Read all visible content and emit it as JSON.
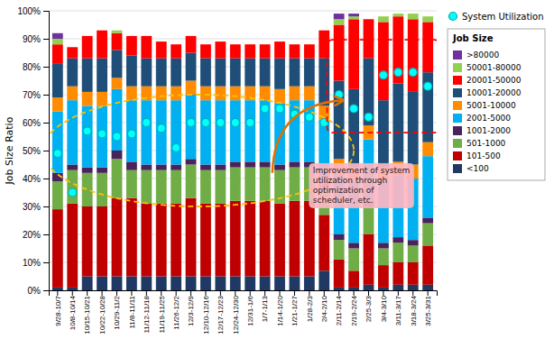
{
  "chart_data": {
    "type": "bar",
    "stacked": true,
    "y_label": "Job Size Ratio",
    "categories": [
      "9/28-10/7",
      "10/8-10/14",
      "10/15-10/21",
      "10/22-10/28",
      "10/29-11/2",
      "11/8-11/11",
      "11/12-11/18",
      "11/19-11/25",
      "11/26-12/2",
      "12/3-12/9",
      "12/10-12/16",
      "12/17-12/23",
      "12/24-12/30",
      "12/31-1/6",
      "1/7-1/13",
      "1/14-1/20",
      "1/21-1/27",
      "1/28-2/3",
      "2/4-2/10",
      "2/11-2/14",
      "2/19-2/24",
      "2/25-3/3",
      "3/4-3/10",
      "3/11-3/17",
      "3/18-3/24",
      "3/25-3/31"
    ],
    "series": [
      {
        "name": "<100",
        "color": "#1f3864",
        "values": [
          1,
          1,
          5,
          5,
          5,
          5,
          5,
          5,
          5,
          5,
          5,
          5,
          5,
          5,
          5,
          5,
          5,
          5,
          7,
          1,
          1,
          2,
          1,
          2,
          2,
          2
        ]
      },
      {
        "name": "101-500",
        "color": "#c00000",
        "values": [
          28,
          30,
          25,
          25,
          28,
          28,
          26,
          26,
          26,
          28,
          26,
          26,
          27,
          27,
          27,
          26,
          27,
          27,
          20,
          10,
          6,
          18,
          8,
          8,
          8,
          14
        ]
      },
      {
        "name": "501-1000",
        "color": "#70ad47",
        "values": [
          10,
          12,
          12,
          12,
          14,
          10,
          12,
          12,
          12,
          12,
          12,
          12,
          12,
          12,
          12,
          12,
          12,
          12,
          10,
          7,
          8,
          10,
          6,
          7,
          6,
          8
        ]
      },
      {
        "name": "1001-2000",
        "color": "#4a235a",
        "values": [
          3,
          2,
          2,
          2,
          3,
          3,
          2,
          2,
          2,
          2,
          2,
          2,
          2,
          2,
          2,
          2,
          2,
          2,
          2,
          2,
          2,
          2,
          2,
          2,
          2,
          2
        ]
      },
      {
        "name": "2001-5000",
        "color": "#00b0f0",
        "values": [
          22,
          23,
          22,
          22,
          22,
          22,
          23,
          23,
          23,
          23,
          23,
          23,
          22,
          22,
          22,
          22,
          22,
          22,
          22,
          22,
          22,
          22,
          22,
          22,
          22,
          22
        ]
      },
      {
        "name": "5001-10000",
        "color": "#ff8c00",
        "values": [
          5,
          5,
          5,
          5,
          4,
          5,
          5,
          5,
          5,
          5,
          5,
          5,
          5,
          5,
          5,
          5,
          5,
          5,
          5,
          5,
          5,
          5,
          5,
          5,
          5,
          5
        ]
      },
      {
        "name": "10001-20000",
        "color": "#1f4e79",
        "values": [
          12,
          10,
          12,
          12,
          10,
          11,
          10,
          10,
          10,
          10,
          10,
          10,
          10,
          10,
          10,
          11,
          10,
          10,
          17,
          28,
          28,
          24,
          24,
          28,
          26,
          25
        ]
      },
      {
        "name": "20001-50000",
        "color": "#ff0000",
        "values": [
          7,
          4,
          8,
          10,
          6,
          7,
          8,
          6,
          5,
          6,
          5,
          6,
          5,
          5,
          5,
          6,
          5,
          5,
          10,
          20,
          25,
          14,
          28,
          24,
          26,
          18
        ]
      },
      {
        "name": "50001-80000",
        "color": "#92d050",
        "values": [
          2,
          0,
          0,
          0,
          1,
          0,
          0,
          0,
          0,
          0,
          0,
          0,
          0,
          0,
          0,
          0,
          0,
          0,
          0,
          2,
          1,
          0,
          2,
          1,
          2,
          2
        ]
      },
      {
        "name": ">80000",
        "color": "#7030a0",
        "values": [
          2,
          0,
          0,
          0,
          0,
          0,
          0,
          0,
          0,
          0,
          0,
          0,
          0,
          0,
          0,
          0,
          0,
          0,
          0,
          2,
          1,
          0,
          0,
          0,
          0,
          0
        ]
      },
      {
        "name": "System Utilization",
        "type": "scatter",
        "marker": "circle",
        "color": "cyan",
        "values": [
          49,
          35,
          57,
          56,
          55,
          56,
          60,
          58,
          51,
          60,
          60,
          60,
          60,
          60,
          65,
          65,
          63,
          62,
          60,
          70,
          65,
          62,
          77,
          78,
          78,
          73
        ]
      }
    ],
    "ylim": [
      0,
      100
    ],
    "yticks": [
      {
        "value": 0,
        "label": "0%"
      },
      {
        "value": 10,
        "label": "10%"
      },
      {
        "value": 20,
        "label": "20%"
      },
      {
        "value": 30,
        "label": "30%"
      },
      {
        "value": 40,
        "label": "40%"
      },
      {
        "value": 50,
        "label": "50%"
      },
      {
        "value": 60,
        "label": "60%"
      },
      {
        "value": 70,
        "label": "70%"
      },
      {
        "value": 80,
        "label": "80%"
      },
      {
        "value": 90,
        "label": "90%"
      },
      {
        "value": 100,
        "label": "100%"
      }
    ],
    "grid": true,
    "legend": "right",
    "legend_title": "Job Size",
    "annotations": [
      {
        "text": "Improvement of system\nutilization through\noptimization of\nscheduler, etc."
      }
    ]
  }
}
